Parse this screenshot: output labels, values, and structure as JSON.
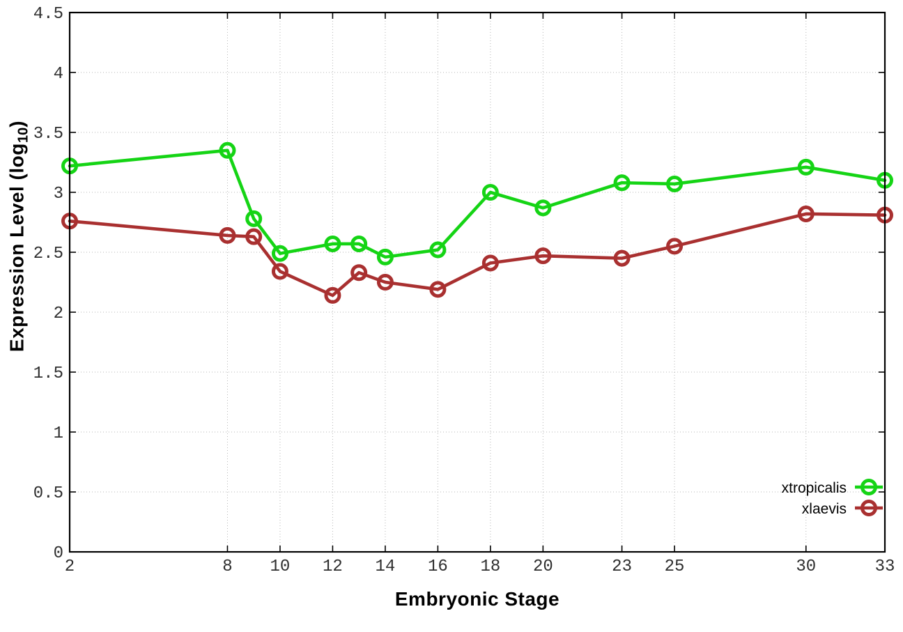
{
  "chart_data": {
    "type": "line",
    "title": "",
    "xlabel": "Embryonic Stage",
    "ylabel": "Expression Level (log10)",
    "ylabel_parts": {
      "main": "Expression Level (log",
      "sub": "10",
      "close": ")"
    },
    "xlim": [
      2,
      33
    ],
    "ylim": [
      0,
      4.5
    ],
    "xticks": [
      2,
      8,
      10,
      12,
      14,
      16,
      18,
      20,
      23,
      25,
      30,
      33
    ],
    "xtick_labels": [
      "2",
      "8",
      "10",
      "12",
      "14",
      "16",
      "18",
      "20",
      "23",
      "25",
      "30",
      "33"
    ],
    "yticks": [
      0,
      0.5,
      1,
      1.5,
      2,
      2.5,
      3,
      3.5,
      4,
      4.5
    ],
    "ytick_labels": [
      "0",
      "0.5",
      "1",
      "1.5",
      "2",
      "2.5",
      "3",
      "3.5",
      "4",
      "4.5"
    ],
    "grid": true,
    "marker": "open-circle",
    "legend_position": "bottom-right-inside",
    "series": [
      {
        "name": "xtropicalis",
        "color": "#15d415",
        "points": [
          [
            2,
            3.22
          ],
          [
            8,
            3.35
          ],
          [
            9,
            2.78
          ],
          [
            10,
            2.49
          ],
          [
            12,
            2.57
          ],
          [
            13,
            2.57
          ],
          [
            14,
            2.46
          ],
          [
            16,
            2.52
          ],
          [
            18,
            3.0
          ],
          [
            20,
            2.87
          ],
          [
            23,
            3.08
          ],
          [
            25,
            3.07
          ],
          [
            30,
            3.21
          ],
          [
            33,
            3.1
          ]
        ]
      },
      {
        "name": "xlaevis",
        "color": "#a93030",
        "points": [
          [
            2,
            2.76
          ],
          [
            8,
            2.64
          ],
          [
            9,
            2.63
          ],
          [
            10,
            2.34
          ],
          [
            12,
            2.14
          ],
          [
            13,
            2.33
          ],
          [
            14,
            2.25
          ],
          [
            16,
            2.19
          ],
          [
            18,
            2.41
          ],
          [
            20,
            2.47
          ],
          [
            23,
            2.45
          ],
          [
            25,
            2.55
          ],
          [
            30,
            2.82
          ],
          [
            33,
            2.81
          ]
        ]
      }
    ]
  },
  "colors": {
    "background": "#ffffff",
    "axis": "#000000",
    "grid": "#b5b5b5",
    "tick_text": "#2e2e2e"
  }
}
